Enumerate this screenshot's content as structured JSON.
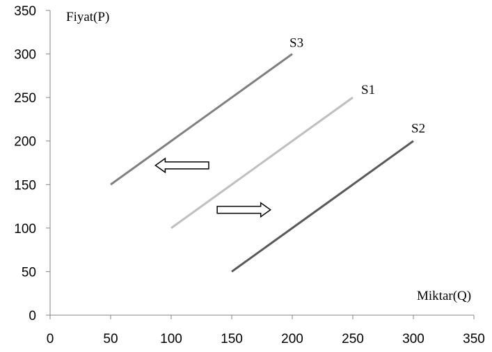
{
  "chart_data": {
    "type": "line",
    "title": "",
    "xlabel": "Miktar(Q)",
    "ylabel": "Fiyat(P)",
    "xlim": [
      0,
      350
    ],
    "ylim": [
      0,
      350
    ],
    "xticks": [
      0,
      50,
      100,
      150,
      200,
      250,
      300,
      350
    ],
    "yticks": [
      0,
      50,
      100,
      150,
      200,
      250,
      300,
      350
    ],
    "grid": false,
    "series": [
      {
        "name": "S3",
        "x": [
          50,
          200
        ],
        "y": [
          150,
          300
        ],
        "color": "#7f7f7f"
      },
      {
        "name": "S1",
        "x": [
          100,
          250
        ],
        "y": [
          100,
          250
        ],
        "color": "#bfbfbf"
      },
      {
        "name": "S2",
        "x": [
          150,
          300
        ],
        "y": [
          50,
          200
        ],
        "color": "#595959"
      }
    ],
    "annotations": [
      {
        "type": "arrow",
        "direction": "left",
        "from": [
          131,
          172
        ],
        "to": [
          87,
          172
        ]
      },
      {
        "type": "arrow",
        "direction": "right",
        "from": [
          138,
          121
        ],
        "to": [
          182,
          121
        ]
      }
    ]
  }
}
